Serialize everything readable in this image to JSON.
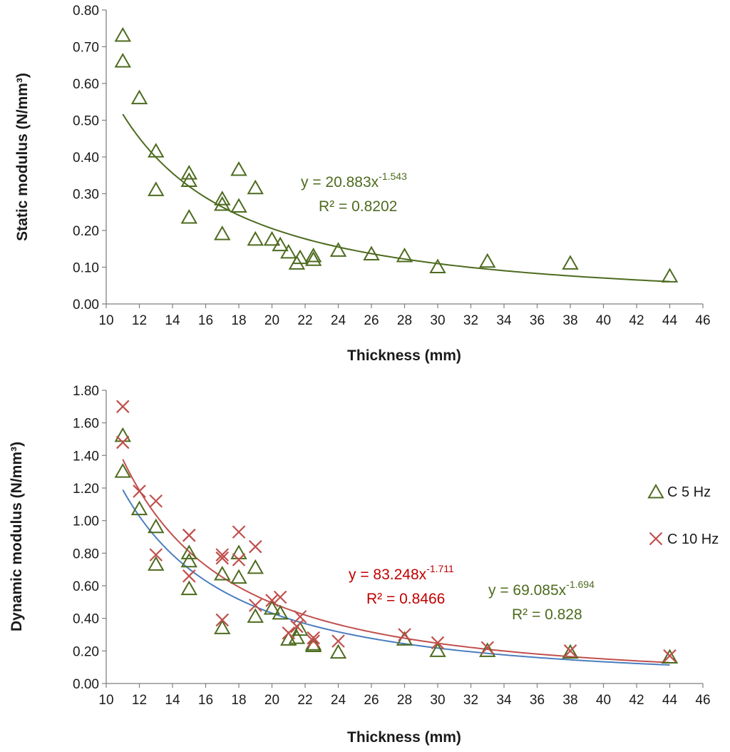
{
  "chart_data": [
    {
      "type": "scatter",
      "xlabel": "Thickness (mm)",
      "ylabel": "Static modulus (N/mm³)",
      "xlim": [
        10,
        46
      ],
      "ylim": [
        0,
        0.8
      ],
      "xticks": [
        "10",
        "12",
        "14",
        "16",
        "18",
        "20",
        "22",
        "24",
        "26",
        "28",
        "30",
        "32",
        "34",
        "36",
        "38",
        "40",
        "42",
        "44",
        "46"
      ],
      "yticks": [
        "0.00",
        "0.10",
        "0.20",
        "0.30",
        "0.40",
        "0.50",
        "0.60",
        "0.70",
        "0.80"
      ],
      "grid": false,
      "series": [
        {
          "marker": "triangle",
          "color": "#4d6b1f",
          "points": [
            [
              11,
              0.73
            ],
            [
              11,
              0.66
            ],
            [
              12,
              0.56
            ],
            [
              13,
              0.415
            ],
            [
              13,
              0.31
            ],
            [
              15,
              0.355
            ],
            [
              15,
              0.335
            ],
            [
              15,
              0.235
            ],
            [
              17,
              0.285
            ],
            [
              17,
              0.27
            ],
            [
              17,
              0.19
            ],
            [
              18,
              0.365
            ],
            [
              18,
              0.265
            ],
            [
              19,
              0.315
            ],
            [
              19,
              0.175
            ],
            [
              20,
              0.175
            ],
            [
              20.5,
              0.16
            ],
            [
              21,
              0.14
            ],
            [
              21.5,
              0.11
            ],
            [
              21.7,
              0.125
            ],
            [
              22.5,
              0.13
            ],
            [
              22.5,
              0.12
            ],
            [
              24,
              0.145
            ],
            [
              26,
              0.135
            ],
            [
              28,
              0.13
            ],
            [
              30,
              0.1
            ],
            [
              33,
              0.115
            ],
            [
              38,
              0.11
            ],
            [
              44,
              0.075
            ]
          ],
          "trendline": {
            "type": "power",
            "a": 20.883,
            "b": -1.543,
            "x_range": [
              11,
              44
            ],
            "color": "#4d6b1f",
            "eq_base": "y = 20.883x",
            "eq_exp": "-1.543",
            "r2": "R² = 0.8202"
          }
        }
      ]
    },
    {
      "type": "scatter",
      "xlabel": "Thickness (mm)",
      "ylabel": "Dynamic modulus (N/mm³)",
      "xlim": [
        10,
        46
      ],
      "ylim": [
        0,
        1.8
      ],
      "xticks": [
        "10",
        "12",
        "14",
        "16",
        "18",
        "20",
        "22",
        "24",
        "26",
        "28",
        "30",
        "32",
        "34",
        "36",
        "38",
        "40",
        "42",
        "44",
        "46"
      ],
      "yticks": [
        "0.00",
        "0.20",
        "0.40",
        "0.60",
        "0.80",
        "1.00",
        "1.20",
        "1.40",
        "1.60",
        "1.80"
      ],
      "grid": false,
      "legend_position": "right",
      "series": [
        {
          "name": "C 5 Hz",
          "marker": "triangle",
          "color": "#4d6b1f",
          "points": [
            [
              11,
              1.52
            ],
            [
              11,
              1.3
            ],
            [
              12,
              1.07
            ],
            [
              13,
              0.96
            ],
            [
              13,
              0.73
            ],
            [
              15,
              0.8
            ],
            [
              15,
              0.75
            ],
            [
              15,
              0.58
            ],
            [
              17,
              0.67
            ],
            [
              17,
              0.34
            ],
            [
              18,
              0.8
            ],
            [
              18,
              0.65
            ],
            [
              19,
              0.71
            ],
            [
              19,
              0.41
            ],
            [
              20,
              0.46
            ],
            [
              20.5,
              0.43
            ],
            [
              21,
              0.27
            ],
            [
              21.5,
              0.28
            ],
            [
              21.7,
              0.33
            ],
            [
              22.5,
              0.24
            ],
            [
              22.5,
              0.23
            ],
            [
              24,
              0.19
            ],
            [
              28,
              0.27
            ],
            [
              30,
              0.2
            ],
            [
              33,
              0.2
            ],
            [
              38,
              0.19
            ],
            [
              44,
              0.16
            ]
          ],
          "trendline": {
            "type": "power",
            "a": 69.085,
            "b": -1.694,
            "x_range": [
              11,
              44
            ],
            "color": "#4a7ebf",
            "eq_base": "y = 69.085x",
            "eq_exp": "-1.694",
            "r2": "R² = 0.828",
            "label_color": "#4d6b1f"
          }
        },
        {
          "name": "C 10 Hz",
          "marker": "x",
          "color": "#c0504d",
          "points": [
            [
              11,
              1.7
            ],
            [
              11,
              1.48
            ],
            [
              12,
              1.18
            ],
            [
              13,
              1.12
            ],
            [
              13,
              0.79
            ],
            [
              15,
              0.91
            ],
            [
              15,
              0.91
            ],
            [
              15,
              0.66
            ],
            [
              17,
              0.79
            ],
            [
              17,
              0.77
            ],
            [
              17,
              0.39
            ],
            [
              18,
              0.93
            ],
            [
              18,
              0.76
            ],
            [
              19,
              0.84
            ],
            [
              19,
              0.48
            ],
            [
              20,
              0.51
            ],
            [
              20.5,
              0.53
            ],
            [
              21,
              0.31
            ],
            [
              21.5,
              0.35
            ],
            [
              21.7,
              0.41
            ],
            [
              22.5,
              0.28
            ],
            [
              22.5,
              0.26
            ],
            [
              24,
              0.26
            ],
            [
              28,
              0.3
            ],
            [
              30,
              0.25
            ],
            [
              33,
              0.22
            ],
            [
              38,
              0.2
            ],
            [
              44,
              0.17
            ]
          ],
          "trendline": {
            "type": "power",
            "a": 83.248,
            "b": -1.711,
            "x_range": [
              11,
              44
            ],
            "color": "#c0504d",
            "eq_base": "y = 83.248x",
            "eq_exp": "-1.711",
            "r2": "R² = 0.8466",
            "label_color": "#c00000"
          }
        }
      ]
    }
  ]
}
